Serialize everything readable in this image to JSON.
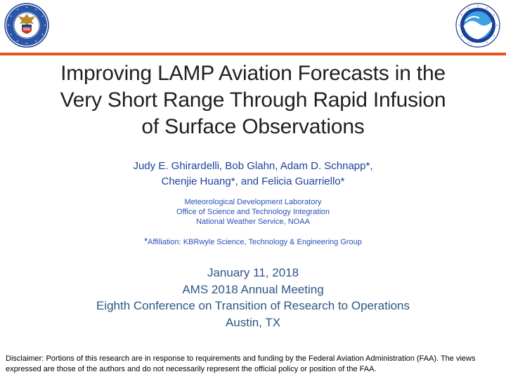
{
  "logos": {
    "commerce_seal_icon": "department-of-commerce-seal",
    "noaa_logo_icon": "noaa-logo"
  },
  "colors": {
    "accent_rule": "#e8541c",
    "author_blue": "#1f3f9a",
    "event_blue": "#2d5585"
  },
  "title": {
    "lines": [
      "Improving LAMP Aviation Forecasts in the",
      "Very Short Range Through Rapid Infusion",
      "of Surface Observations"
    ]
  },
  "authors": {
    "lines": [
      "Judy E. Ghirardelli, Bob Glahn, Adam D. Schnapp*,",
      "Chenjie Huang*, and Felicia Guarriello*"
    ]
  },
  "organization": {
    "lines": [
      "Meteorological Development Laboratory",
      "Office of Science and Technology Integration",
      "National Weather Service, NOAA"
    ]
  },
  "affiliation": {
    "marker": "*",
    "text": "Affiliation: KBRwyle Science, Technology & Engineering Group"
  },
  "event": {
    "lines": [
      "January 11, 2018",
      "AMS 2018 Annual Meeting",
      "Eighth Conference on Transition of Research to Operations",
      "Austin, TX"
    ]
  },
  "disclaimer": "Disclaimer:  Portions of this research are in response to requirements and funding by the Federal Aviation Administration (FAA). The views expressed are those of the authors and do not necessarily represent the official policy or position of the FAA."
}
